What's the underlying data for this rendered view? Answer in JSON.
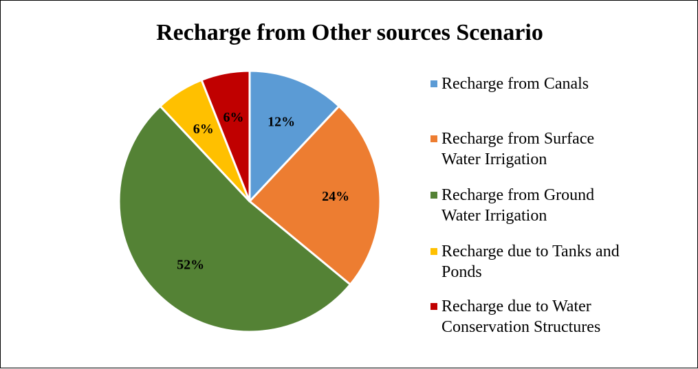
{
  "chart_data": {
    "type": "pie",
    "title": "Recharge from Other sources Scenario",
    "legend_position": "right",
    "slices": [
      {
        "label": "Recharge from Canals",
        "value": 12,
        "display": "12%",
        "color": "#5B9BD5"
      },
      {
        "label": "Recharge from Surface Water Irrigation",
        "value": 24,
        "display": "24%",
        "color": "#ED7D31"
      },
      {
        "label": "Recharge from Ground Water Irrigation",
        "value": 52,
        "display": "52%",
        "color": "#548235"
      },
      {
        "label": "Recharge due to Tanks and Ponds",
        "value": 6,
        "display": "6%",
        "color": "#FFC000"
      },
      {
        "label": "Recharge due to Water Conservation Structures",
        "value": 6,
        "display": "6%",
        "color": "#C00000"
      }
    ]
  }
}
